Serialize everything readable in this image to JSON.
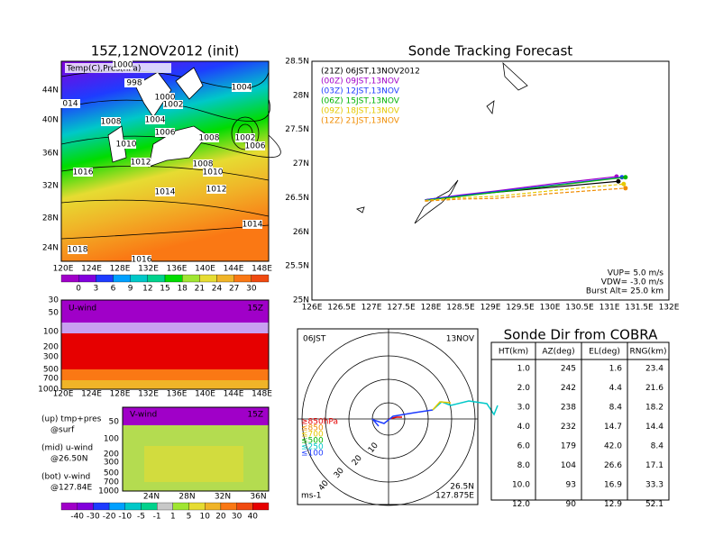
{
  "map_panel": {
    "title": "15Z,12NOV2012 (init)",
    "overlay_label": "Temp(C),Pres(hPa)",
    "lat_labels": [
      "44N",
      "40N",
      "36N",
      "32N",
      "28N",
      "24N"
    ],
    "lon_labels": [
      "120E",
      "124E",
      "128E",
      "132E",
      "136E",
      "140E",
      "144E",
      "148E"
    ],
    "contour_labels": [
      "1000",
      "998",
      "1004",
      "1000",
      "1002",
      "1008",
      "1004",
      "1006",
      "1008",
      "1002",
      "1006",
      "1010",
      "1012",
      "1016",
      "1008",
      "1010",
      "1014",
      "1012",
      "1014",
      "1018",
      "1016",
      "014"
    ],
    "colorbar": {
      "labels": [
        "0",
        "3",
        "6",
        "9",
        "12",
        "15",
        "18",
        "21",
        "24",
        "27",
        "30"
      ],
      "colors": [
        "#a000c8",
        "#8200dc",
        "#1e3cff",
        "#00a0ff",
        "#00c8c8",
        "#00d28c",
        "#00dc00",
        "#a0e632",
        "#e6dc32",
        "#f0b428",
        "#fa7814",
        "#f04a10"
      ]
    }
  },
  "u_panel": {
    "title": "U-wind",
    "time": "15Z",
    "pressure_labels": [
      "30",
      "50",
      "100",
      "200",
      "300",
      "500",
      "700",
      "1000"
    ],
    "lon_labels": [
      "120E",
      "124E",
      "128E",
      "132E",
      "136E",
      "140E",
      "144E",
      "148E"
    ]
  },
  "v_panel": {
    "title": "V-wind",
    "time": "15Z",
    "pressure_labels": [
      "50",
      "100",
      "200",
      "300",
      "500",
      "700",
      "1000"
    ],
    "lat_labels": [
      "24N",
      "28N",
      "32N",
      "36N"
    ],
    "colorbar": {
      "labels": [
        "-40",
        "-30",
        "-20",
        "-10",
        "-5",
        "-1",
        "1",
        "5",
        "10",
        "20",
        "30",
        "40"
      ],
      "colors": [
        "#a000c8",
        "#8200dc",
        "#1e3cff",
        "#00a0ff",
        "#00c8c8",
        "#00d28c",
        "#c8c8c8",
        "#a0e632",
        "#e6dc32",
        "#f0b428",
        "#fa7814",
        "#f04a10",
        "#e60000"
      ]
    }
  },
  "notes": [
    "(up) tmp+pres",
    "@surf",
    "(mid) u-wind",
    "@26.50N",
    "(bot) v-wind",
    "@127.84E"
  ],
  "tracking": {
    "title": "Sonde Tracking Forecast",
    "lat_labels": [
      "28.5N",
      "28N",
      "27.5N",
      "27N",
      "26.5N",
      "26N",
      "25.5N",
      "25N"
    ],
    "lon_labels": [
      "126E",
      "126.5E",
      "127E",
      "127.5E",
      "128E",
      "128.5E",
      "129E",
      "129.5E",
      "130E",
      "130.5E",
      "131E",
      "131.5E",
      "132E"
    ],
    "lon_range": [
      126,
      132
    ],
    "lat_range": [
      25,
      28.5
    ],
    "tracks": [
      {
        "name": "(21Z) 06JST,13NOV2012",
        "color": "#000000",
        "style": "solid",
        "lon": [
          127.9,
          128.5,
          129.1,
          130.0,
          131.15
        ],
        "lat": [
          26.47,
          26.53,
          26.58,
          26.65,
          26.74
        ]
      },
      {
        "name": "(00Z) 09JST,13NOV",
        "color": "#a000c8",
        "style": "solid",
        "lon": [
          127.9,
          128.5,
          129.1,
          130.0,
          131.12
        ],
        "lat": [
          26.47,
          26.54,
          26.6,
          26.7,
          26.81
        ]
      },
      {
        "name": "(03Z) 12JST,13NOV",
        "color": "#1e3cff",
        "style": "solid",
        "lon": [
          127.9,
          128.5,
          129.1,
          130.0,
          131.21
        ],
        "lat": [
          26.47,
          26.53,
          26.59,
          26.68,
          26.8
        ]
      },
      {
        "name": "(06Z) 15JST,13NOV",
        "color": "#00b400",
        "style": "solid",
        "lon": [
          127.9,
          128.5,
          129.1,
          130.0,
          131.27
        ],
        "lat": [
          26.46,
          26.52,
          26.58,
          26.67,
          26.8
        ]
      },
      {
        "name": "(09Z) 18JST,13NOV",
        "color": "#e6c800",
        "style": "dashed",
        "lon": [
          127.9,
          128.5,
          129.1,
          130.0,
          131.24
        ],
        "lat": [
          26.46,
          26.5,
          26.52,
          26.6,
          26.7
        ]
      },
      {
        "name": "(12Z) 21JST,13NOV",
        "color": "#f08c00",
        "style": "dashed",
        "lon": [
          127.9,
          128.5,
          129.1,
          130.0,
          131.27
        ],
        "lat": [
          26.45,
          26.48,
          26.49,
          26.56,
          26.64
        ]
      }
    ],
    "parameters": [
      "VUP= 5.0 m/s",
      "VDW= -3.0 m/s",
      "Burst Alt= 25.0 km"
    ]
  },
  "hodograph": {
    "time": "06JST",
    "date": "13NOV",
    "lat": "26.5N",
    "lon": "127.875E",
    "unit": "ms-1",
    "ring_labels": [
      "10",
      "20",
      "30",
      "40"
    ],
    "levels": [
      {
        "label": "≥850hPa",
        "color": "#e60000"
      },
      {
        "label": "≤850",
        "color": "#f08c00"
      },
      {
        "label": "≤700",
        "color": "#e6c800"
      },
      {
        "label": "≤500",
        "color": "#00b400"
      },
      {
        "label": "≤250",
        "color": "#00c8c8"
      },
      {
        "label": "≤100",
        "color": "#1e3cff"
      }
    ]
  },
  "table": {
    "title": "Sonde Dir from COBRA",
    "header": [
      "HT(km)",
      "AZ(deg)",
      "EL(deg)",
      "RNG(km)"
    ],
    "rows": [
      [
        "1.0",
        "245",
        "1.6",
        "23.4"
      ],
      [
        "2.0",
        "242",
        "4.4",
        "21.6"
      ],
      [
        "3.0",
        "238",
        "8.4",
        "18.2"
      ],
      [
        "4.0",
        "232",
        "14.7",
        "14.4"
      ],
      [
        "6.0",
        "179",
        "42.0",
        "8.4"
      ],
      [
        "8.0",
        "104",
        "26.6",
        "17.1"
      ],
      [
        "10.0",
        "93",
        "16.9",
        "33.3"
      ],
      [
        "12.0",
        "90",
        "12.9",
        "52.1"
      ]
    ]
  }
}
